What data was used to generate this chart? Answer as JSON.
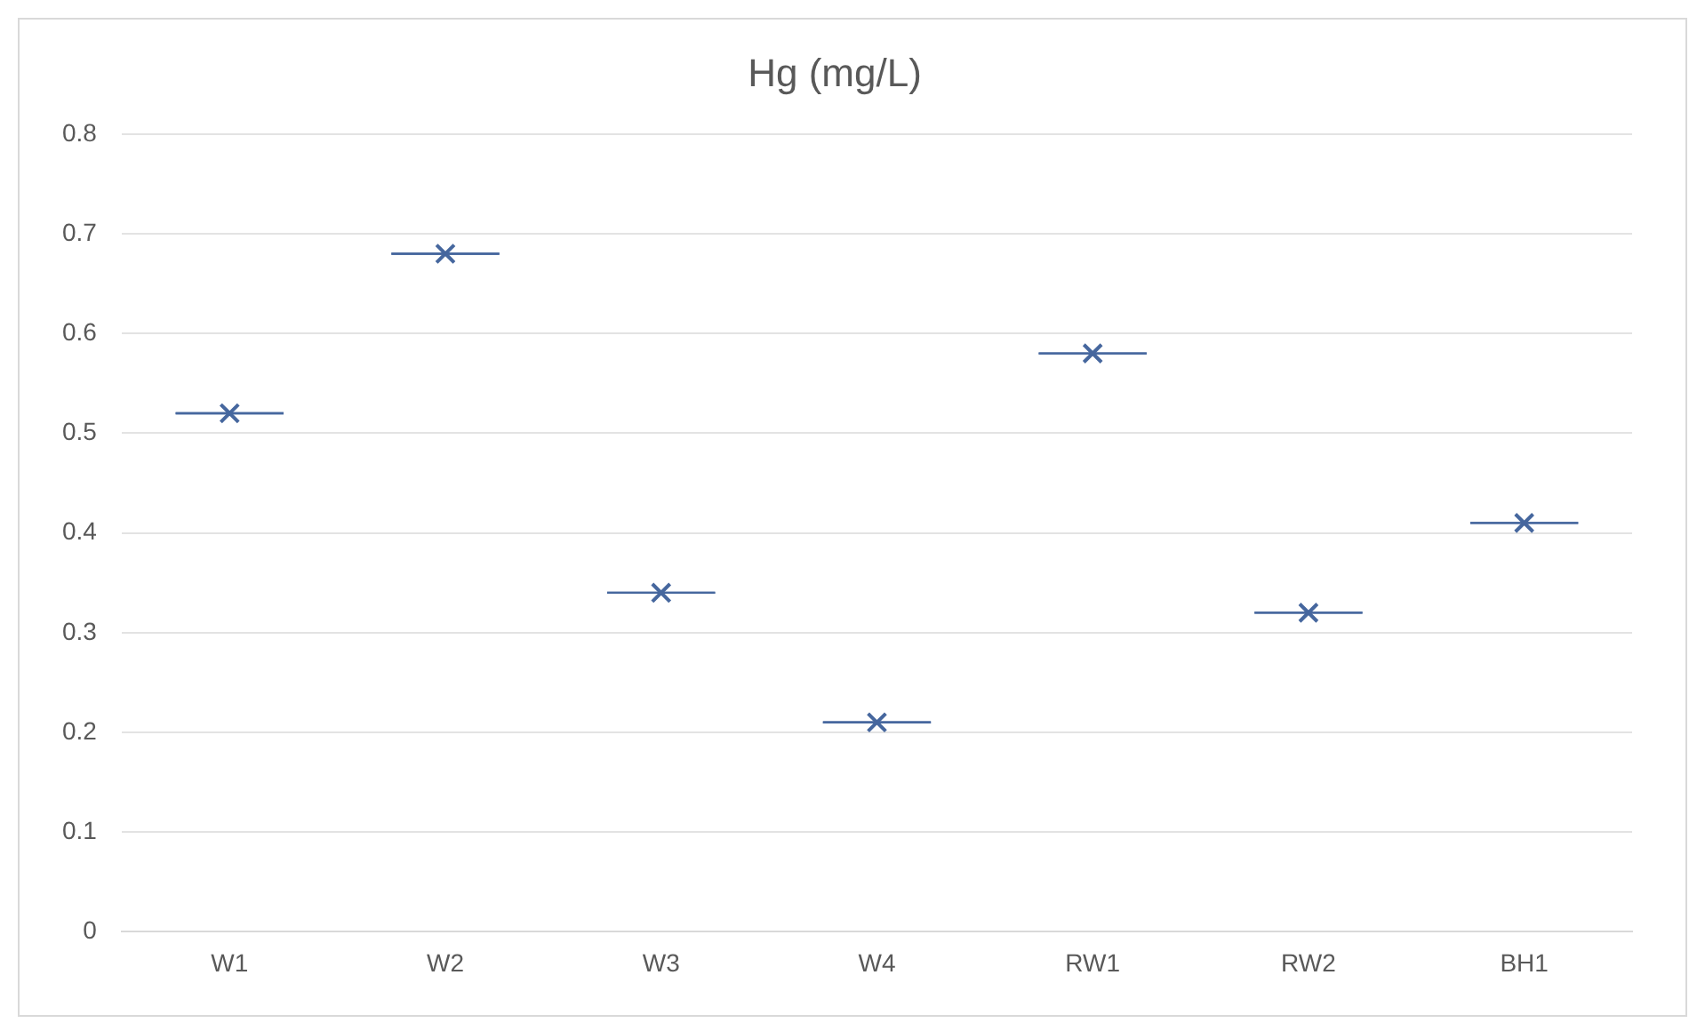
{
  "chart_data": {
    "type": "box",
    "title": "Hg (mg/L)",
    "categories": [
      "W1",
      "W2",
      "W3",
      "W4",
      "RW1",
      "RW2",
      "BH1"
    ],
    "boxes": [
      {
        "low": 0.52,
        "q1": 0.52,
        "median": 0.52,
        "q3": 0.52,
        "high": 0.52,
        "mean": 0.52
      },
      {
        "low": 0.68,
        "q1": 0.68,
        "median": 0.68,
        "q3": 0.68,
        "high": 0.68,
        "mean": 0.68
      },
      {
        "low": 0.34,
        "q1": 0.34,
        "median": 0.34,
        "q3": 0.34,
        "high": 0.34,
        "mean": 0.34
      },
      {
        "low": 0.21,
        "q1": 0.21,
        "median": 0.21,
        "q3": 0.21,
        "high": 0.21,
        "mean": 0.21
      },
      {
        "low": 0.58,
        "q1": 0.58,
        "median": 0.58,
        "q3": 0.58,
        "high": 0.58,
        "mean": 0.58
      },
      {
        "low": 0.32,
        "q1": 0.32,
        "median": 0.32,
        "q3": 0.32,
        "high": 0.32,
        "mean": 0.32
      },
      {
        "low": 0.41,
        "q1": 0.41,
        "median": 0.41,
        "q3": 0.41,
        "high": 0.41,
        "mean": 0.41
      }
    ],
    "color": "#46679e",
    "ylim": [
      0,
      0.8
    ],
    "yticks": [
      0,
      0.1,
      0.2,
      0.3,
      0.4,
      0.5,
      0.6,
      0.7,
      0.8
    ],
    "grid": "y",
    "marker": "cross"
  }
}
